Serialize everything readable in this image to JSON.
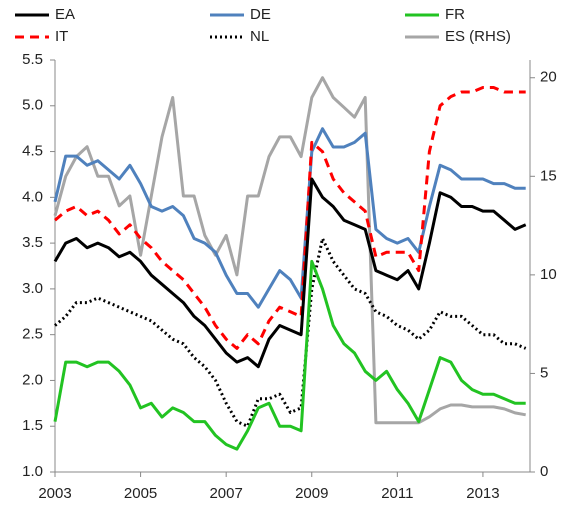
{
  "chart_data": {
    "type": "line",
    "x": [
      2003,
      2003.25,
      2003.5,
      2003.75,
      2004,
      2004.25,
      2004.5,
      2004.75,
      2005,
      2005.25,
      2005.5,
      2005.75,
      2006,
      2006.25,
      2006.5,
      2006.75,
      2007,
      2007.25,
      2007.5,
      2007.75,
      2008,
      2008.25,
      2008.5,
      2008.75,
      2009,
      2009.25,
      2009.5,
      2009.75,
      2010,
      2010.25,
      2010.5,
      2010.75,
      2011,
      2011.25,
      2011.5,
      2011.75,
      2012,
      2012.25,
      2012.5,
      2012.75,
      2013,
      2013.25,
      2013.5,
      2013.75,
      2014
    ],
    "series": [
      {
        "name": "EA",
        "color": "#000000",
        "dash": "solid",
        "values": [
          3.3,
          3.5,
          3.55,
          3.45,
          3.5,
          3.45,
          3.35,
          3.4,
          3.3,
          3.15,
          3.05,
          2.95,
          2.85,
          2.7,
          2.6,
          2.45,
          2.3,
          2.2,
          2.25,
          2.15,
          2.45,
          2.6,
          2.55,
          2.5,
          4.2,
          4.0,
          3.9,
          3.75,
          3.7,
          3.65,
          3.2,
          3.15,
          3.1,
          3.2,
          3.0,
          3.5,
          4.05,
          4.0,
          3.9,
          3.9,
          3.85,
          3.85,
          3.75,
          3.65,
          3.7
        ]
      },
      {
        "name": "DE",
        "color": "#4f81bd",
        "dash": "solid",
        "values": [
          3.95,
          4.45,
          4.45,
          4.35,
          4.4,
          4.3,
          4.2,
          4.35,
          4.15,
          3.9,
          3.85,
          3.9,
          3.8,
          3.55,
          3.5,
          3.4,
          3.15,
          2.95,
          2.95,
          2.8,
          3.0,
          3.2,
          3.1,
          2.9,
          4.5,
          4.75,
          4.55,
          4.55,
          4.6,
          4.7,
          3.65,
          3.55,
          3.5,
          3.55,
          3.4,
          3.9,
          4.35,
          4.3,
          4.2,
          4.2,
          4.2,
          4.15,
          4.15,
          4.1,
          4.1
        ]
      },
      {
        "name": "FR",
        "color": "#22c322",
        "dash": "solid",
        "values": [
          1.55,
          2.2,
          2.2,
          2.15,
          2.2,
          2.2,
          2.1,
          1.95,
          1.7,
          1.75,
          1.6,
          1.7,
          1.65,
          1.55,
          1.55,
          1.4,
          1.3,
          1.25,
          1.45,
          1.7,
          1.75,
          1.5,
          1.5,
          1.45,
          3.3,
          3.0,
          2.6,
          2.4,
          2.3,
          2.1,
          2.0,
          2.1,
          1.9,
          1.75,
          1.55,
          1.9,
          2.25,
          2.2,
          2.0,
          1.9,
          1.85,
          1.85,
          1.8,
          1.75,
          1.75
        ]
      },
      {
        "name": "IT",
        "color": "#ff0000",
        "dash": "dashed",
        "values": [
          3.75,
          3.85,
          3.9,
          3.8,
          3.85,
          3.75,
          3.6,
          3.7,
          3.55,
          3.45,
          3.3,
          3.2,
          3.1,
          2.95,
          2.8,
          2.6,
          2.45,
          2.35,
          2.5,
          2.4,
          2.65,
          2.8,
          2.75,
          2.7,
          4.6,
          4.5,
          4.2,
          4.05,
          3.95,
          3.85,
          3.35,
          3.4,
          3.4,
          3.4,
          3.2,
          4.5,
          5.0,
          5.1,
          5.15,
          5.15,
          5.2,
          5.2,
          5.15,
          5.15,
          5.15
        ]
      },
      {
        "name": "NL",
        "color": "#000000",
        "dash": "dotted",
        "values": [
          2.6,
          2.7,
          2.85,
          2.85,
          2.9,
          2.85,
          2.8,
          2.75,
          2.7,
          2.65,
          2.55,
          2.45,
          2.4,
          2.25,
          2.15,
          2.0,
          1.75,
          1.55,
          1.5,
          1.8,
          1.8,
          1.85,
          1.65,
          1.7,
          3.0,
          3.55,
          3.3,
          3.15,
          3.0,
          2.95,
          2.75,
          2.7,
          2.6,
          2.55,
          2.45,
          2.55,
          2.75,
          2.7,
          2.7,
          2.6,
          2.5,
          2.5,
          2.4,
          2.4,
          2.35
        ]
      },
      {
        "name": "ES (RHS)",
        "color": "#a6a6a6",
        "dash": "solid",
        "axis": "y2",
        "values": [
          13,
          15,
          16,
          16.5,
          15,
          15,
          13.5,
          14,
          11,
          14,
          17,
          19,
          14,
          14,
          12,
          11,
          12,
          10,
          14,
          14,
          16,
          17,
          17,
          16,
          19,
          20,
          19,
          18.5,
          18,
          19,
          2.5,
          2.5,
          2.5,
          2.5,
          2.5,
          2.8,
          3.2,
          3.4,
          3.4,
          3.3,
          3.3,
          3.3,
          3.2,
          3.0,
          2.9
        ]
      }
    ],
    "xlim": [
      2003,
      2014.1
    ],
    "xticks": [
      2003,
      2005,
      2007,
      2009,
      2011,
      2013
    ],
    "ylim": [
      1,
      5.5
    ],
    "yticks": [
      {
        "value": 1,
        "label": "1.0"
      },
      1.5,
      {
        "value": 2,
        "label": "2.0"
      },
      2.5,
      {
        "value": 3,
        "label": "3.0"
      },
      3.5,
      {
        "value": 4,
        "label": "4.0"
      },
      4.5,
      {
        "value": 5,
        "label": "5.0"
      },
      5.5
    ],
    "y2lim": [
      0,
      20.9
    ],
    "y2ticks": [
      0,
      5,
      10,
      15,
      20
    ],
    "grid": false
  }
}
